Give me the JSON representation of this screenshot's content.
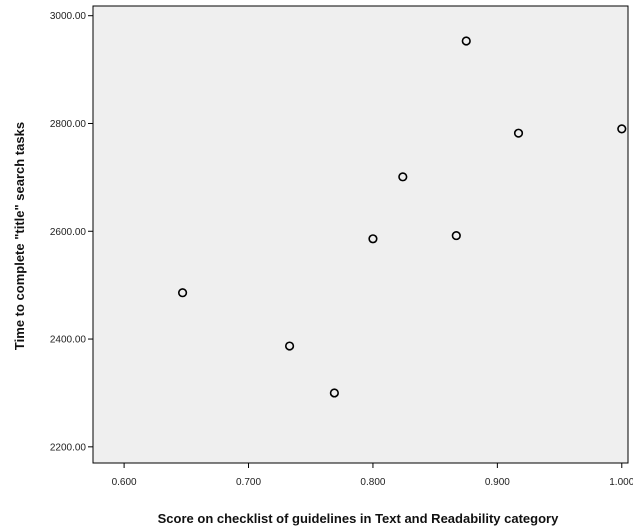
{
  "chart_data": {
    "type": "scatter",
    "title": "",
    "xlabel": "Score on checklist of guidelines in Text and Readability category",
    "ylabel": "Time to complete \"title\" search tasks",
    "xlim": [
      0.575,
      1.005
    ],
    "ylim": [
      2170,
      3018
    ],
    "x_ticks": [
      "0.600",
      "0.700",
      "0.800",
      "0.900",
      "1.000"
    ],
    "y_ticks": [
      "2200.00",
      "2400.00",
      "2600.00",
      "2800.00",
      "3000.00"
    ],
    "grid": false,
    "legend": "none",
    "plot_background": "#efefef",
    "marker": "hollow-circle",
    "marker_color": "#000000",
    "points": [
      {
        "x": 0.647,
        "y": 2486
      },
      {
        "x": 0.733,
        "y": 2387
      },
      {
        "x": 0.769,
        "y": 2300
      },
      {
        "x": 0.8,
        "y": 2586
      },
      {
        "x": 0.824,
        "y": 2701
      },
      {
        "x": 0.867,
        "y": 2592
      },
      {
        "x": 0.875,
        "y": 2953
      },
      {
        "x": 0.917,
        "y": 2782
      },
      {
        "x": 1.0,
        "y": 2790
      }
    ]
  }
}
